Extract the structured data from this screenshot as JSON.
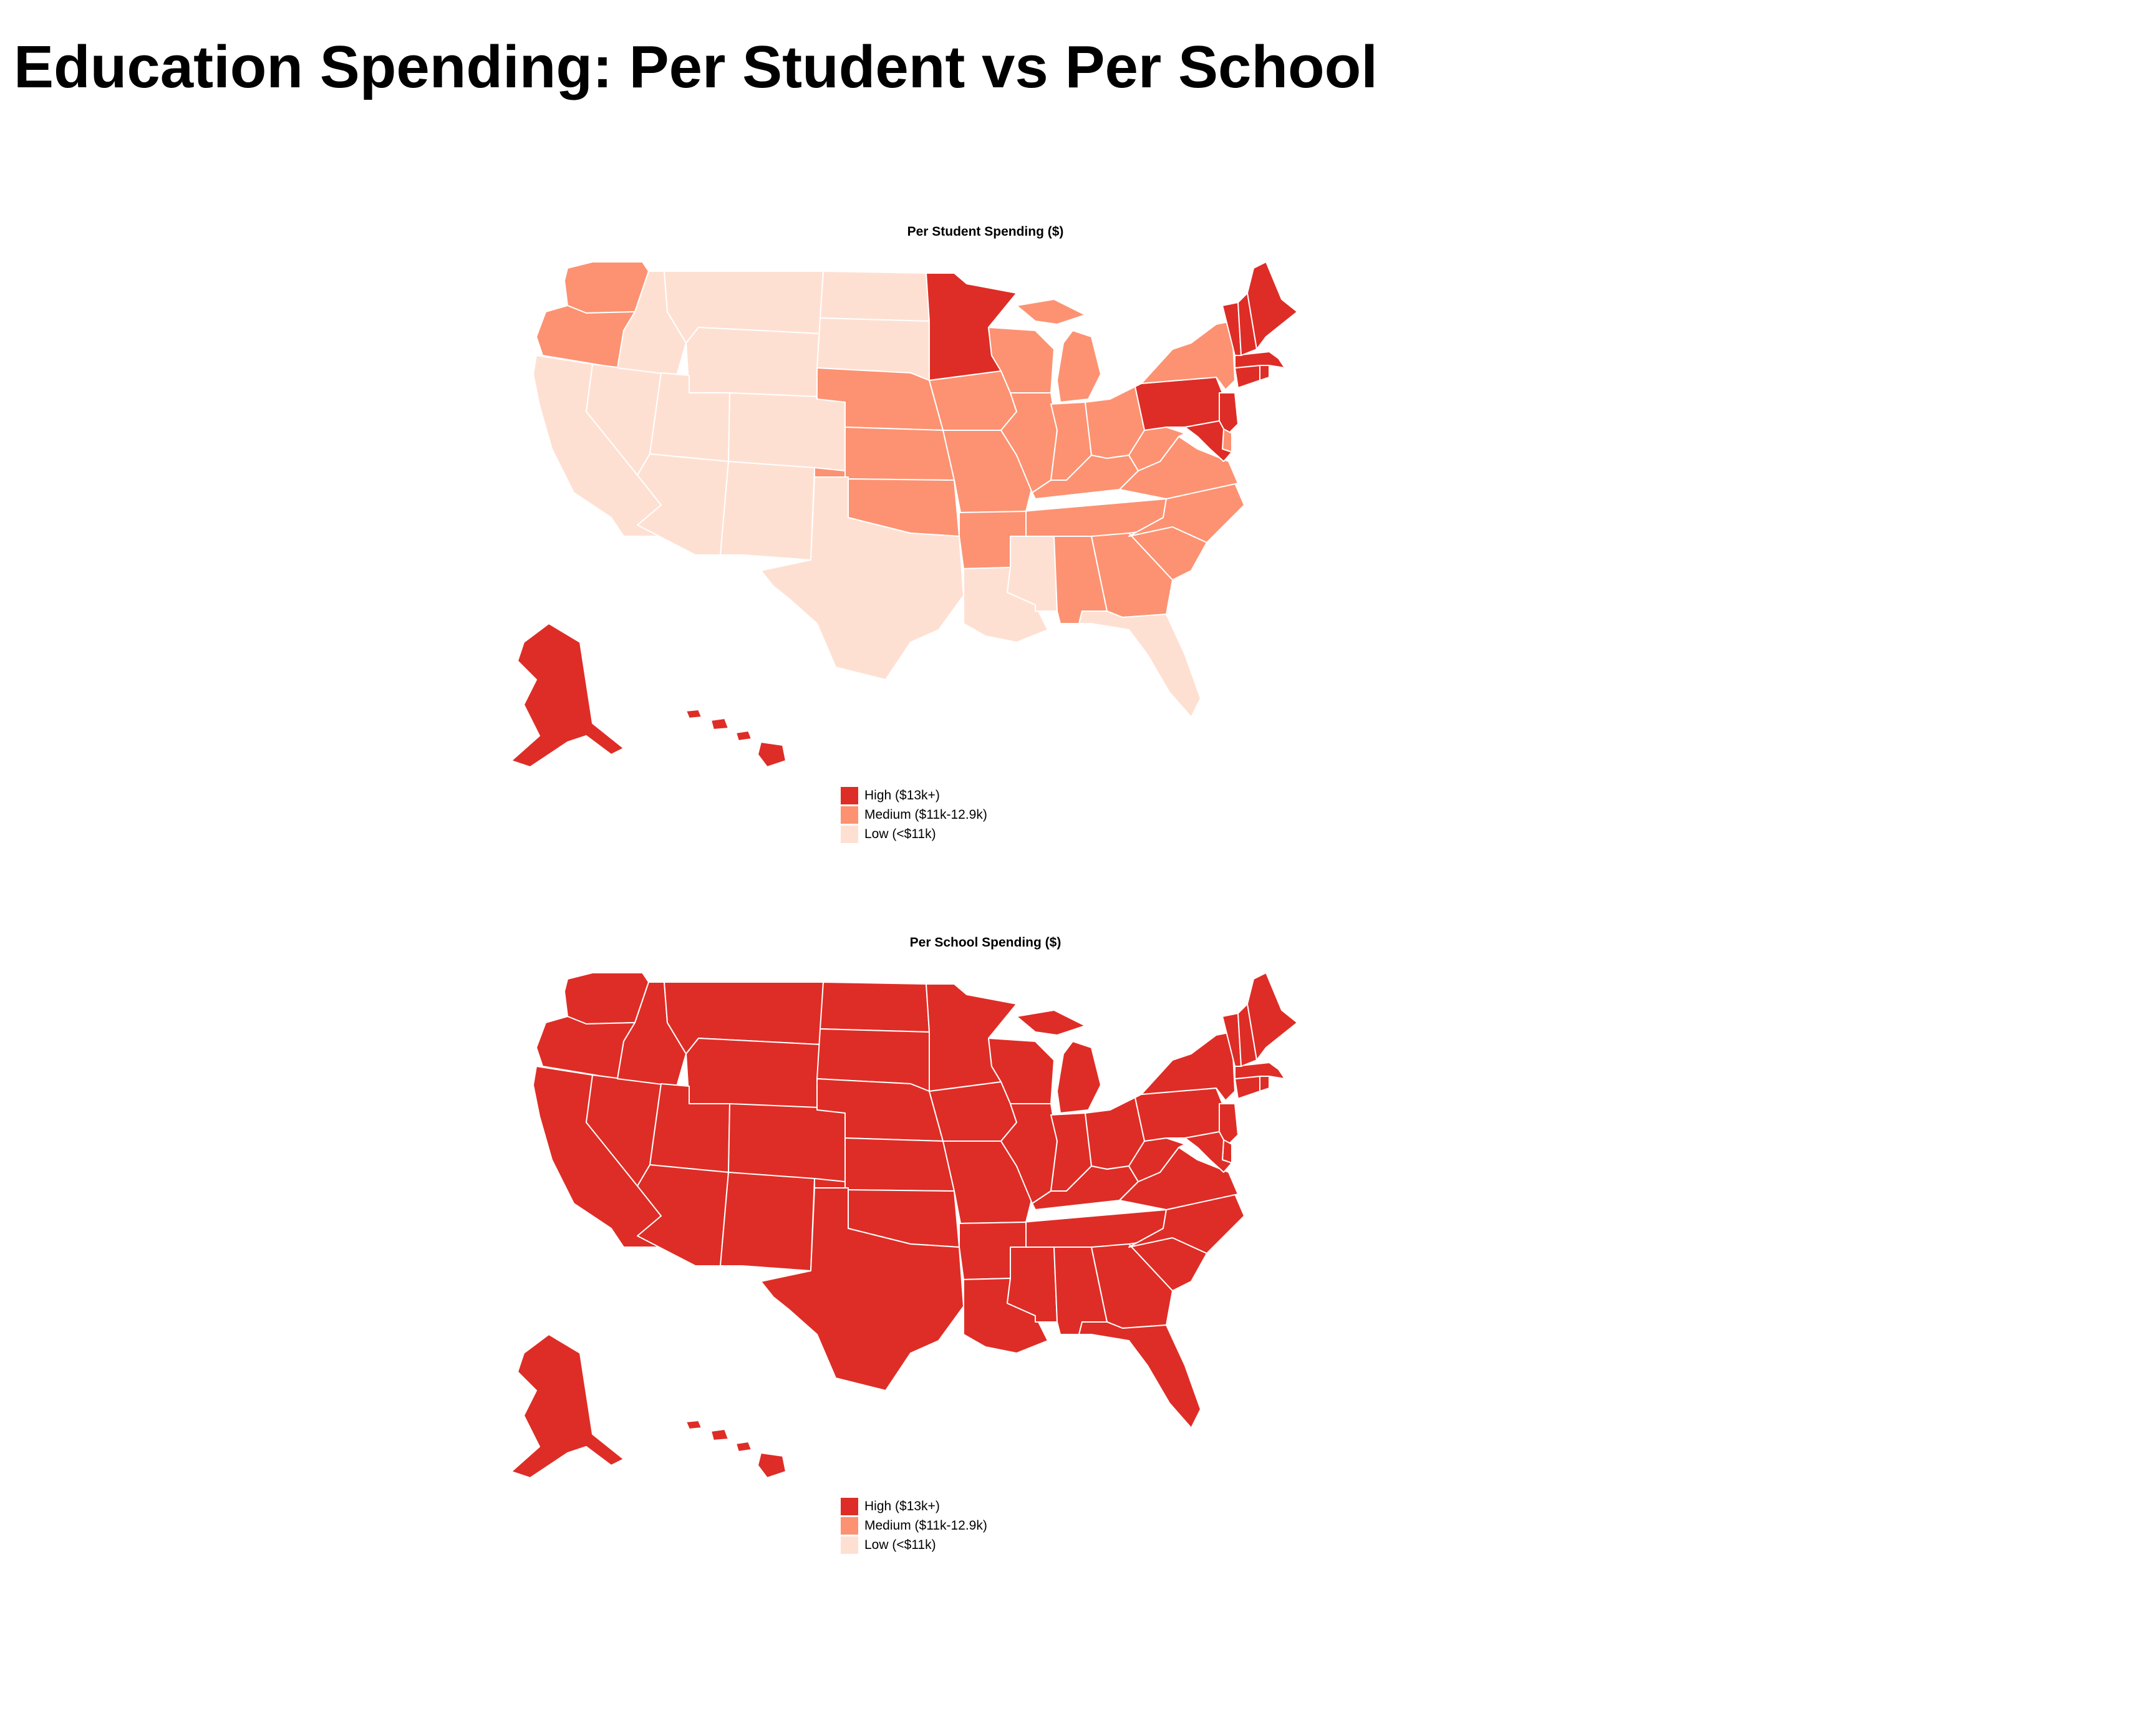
{
  "title": "Education Spending: Per Student vs Per School",
  "scale": {
    "high": {
      "label": "High ($13k+)",
      "color": "#de2d26"
    },
    "medium": {
      "label": "Medium ($11k-12.9k)",
      "color": "#fc9272"
    },
    "low": {
      "label": "Low (<$11k)",
      "color": "#fee0d2"
    }
  },
  "maps": [
    {
      "title": "Per Student Spending ($)",
      "classes": {
        "WA": "medium",
        "OR": "medium",
        "CA": "low",
        "NV": "low",
        "ID": "low",
        "MT": "low",
        "WY": "low",
        "UT": "low",
        "AZ": "low",
        "CO": "low",
        "NM": "low",
        "ND": "low",
        "SD": "low",
        "NE": "medium",
        "KS": "medium",
        "OK": "medium",
        "TX": "low",
        "MN": "high",
        "IA": "medium",
        "MO": "medium",
        "AR": "medium",
        "LA": "low",
        "WI": "medium",
        "IL": "medium",
        "MI": "medium",
        "IN": "medium",
        "OH": "medium",
        "KY": "medium",
        "TN": "medium",
        "MS": "low",
        "AL": "medium",
        "GA": "medium",
        "FL": "low",
        "SC": "medium",
        "NC": "medium",
        "VA": "medium",
        "WV": "medium",
        "PA": "high",
        "NY": "medium",
        "NJ": "high",
        "DE": "medium",
        "MD": "high",
        "CT": "high",
        "RI": "high",
        "MA": "high",
        "VT": "high",
        "NH": "high",
        "ME": "high",
        "AK": "high",
        "HI": "high"
      }
    },
    {
      "title": "Per School Spending ($)",
      "classes": {
        "WA": "high",
        "OR": "high",
        "CA": "high",
        "NV": "high",
        "ID": "high",
        "MT": "high",
        "WY": "high",
        "UT": "high",
        "AZ": "high",
        "CO": "high",
        "NM": "high",
        "ND": "high",
        "SD": "high",
        "NE": "high",
        "KS": "high",
        "OK": "high",
        "TX": "high",
        "MN": "high",
        "IA": "high",
        "MO": "high",
        "AR": "high",
        "LA": "high",
        "WI": "high",
        "IL": "high",
        "MI": "high",
        "IN": "high",
        "OH": "high",
        "KY": "high",
        "TN": "high",
        "MS": "high",
        "AL": "high",
        "GA": "high",
        "FL": "high",
        "SC": "high",
        "NC": "high",
        "VA": "high",
        "WV": "high",
        "PA": "high",
        "NY": "high",
        "NJ": "high",
        "DE": "high",
        "MD": "high",
        "CT": "high",
        "RI": "high",
        "MA": "high",
        "VT": "high",
        "NH": "high",
        "ME": "high",
        "AK": "high",
        "HI": "high"
      }
    }
  ]
}
